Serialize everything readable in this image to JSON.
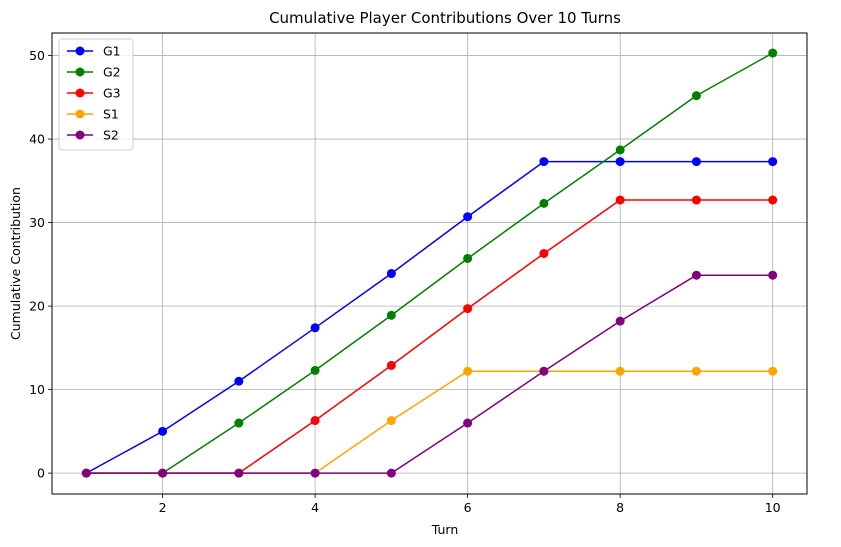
{
  "chart_data": {
    "type": "line",
    "title": "Cumulative Player Contributions Over 10 Turns",
    "xlabel": "Turn",
    "ylabel": "Cumulative Contribution",
    "x": [
      1,
      2,
      3,
      4,
      5,
      6,
      7,
      8,
      9,
      10
    ],
    "xlim": [
      0.55,
      10.45
    ],
    "ylim": [
      -2.5,
      52.7
    ],
    "xticks": [
      2,
      4,
      6,
      8,
      10
    ],
    "yticks": [
      0,
      10,
      20,
      30,
      40,
      50
    ],
    "grid": true,
    "legend_position": "top-left",
    "series": [
      {
        "name": "G1",
        "color": "#0000ff",
        "values": [
          0,
          5.0,
          11.0,
          17.4,
          23.9,
          30.7,
          37.3,
          37.3,
          37.3,
          37.3
        ]
      },
      {
        "name": "G2",
        "color": "#008000",
        "values": [
          0,
          0,
          6.0,
          12.3,
          18.9,
          25.7,
          32.3,
          38.7,
          45.2,
          50.3
        ]
      },
      {
        "name": "G3",
        "color": "#ff0000",
        "values": [
          0,
          0,
          0,
          6.3,
          12.9,
          19.7,
          26.3,
          32.7,
          32.7,
          32.7
        ]
      },
      {
        "name": "S1",
        "color": "#ffa500",
        "values": [
          0,
          0,
          0,
          0,
          6.3,
          12.2,
          12.2,
          12.2,
          12.2,
          12.2
        ]
      },
      {
        "name": "S2",
        "color": "#800080",
        "values": [
          0,
          0,
          0,
          0,
          0,
          6.0,
          12.2,
          18.2,
          23.7,
          23.7
        ]
      }
    ]
  }
}
